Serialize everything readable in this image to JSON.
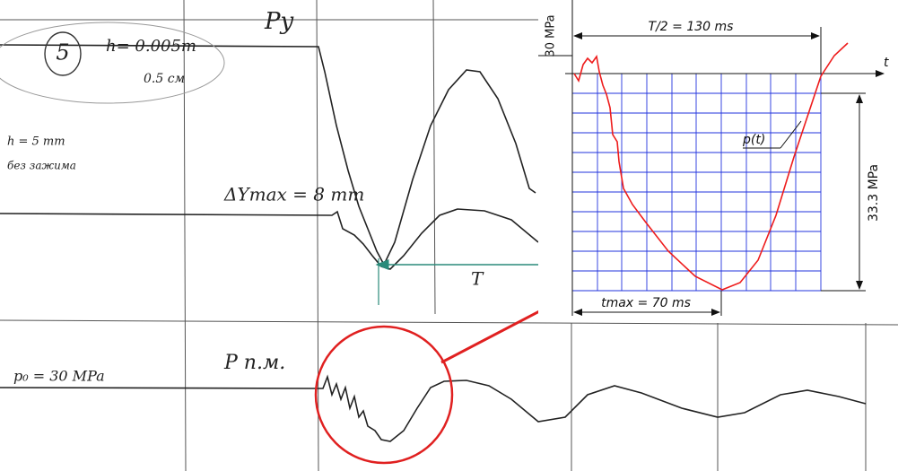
{
  "scan": {
    "trace_top_label": "Py",
    "circle_number": "5",
    "thickness_note": "h= 0.005m",
    "thickness_note_2": "0.5 см",
    "h_note": "h = 5 mm",
    "h_note_2": "без зажима",
    "dy_max": "ΔYmax = 8 mm",
    "period_label": "T",
    "p0_label": "p₀ = 30 MPa",
    "bottom_trace_label": "P п.м."
  },
  "inset": {
    "half_period": "T/2 = 130 ms",
    "scale_label": "30 MPa",
    "time_axis": "t",
    "curve_label": "p(t)",
    "amplitude": "33.3 MPa",
    "t_max": "tmax = 70 ms"
  }
}
